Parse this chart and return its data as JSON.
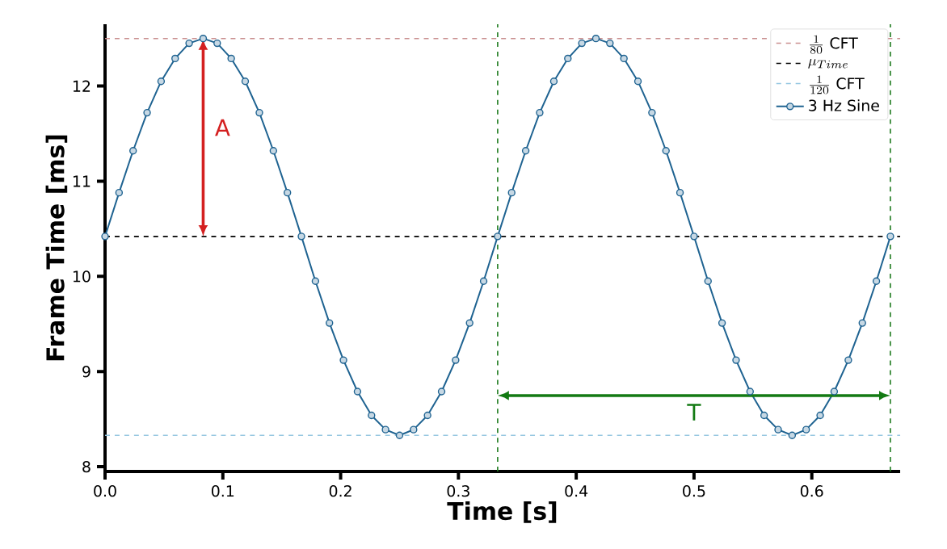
{
  "chart_data": {
    "type": "line",
    "xlabel": "Time [s]",
    "ylabel": "Frame Time [ms]",
    "xlim": [
      0,
      0.675
    ],
    "ylim": [
      7.95,
      12.65
    ],
    "xticks": [
      {
        "value": 0,
        "label": "0.0"
      },
      0.1,
      0.2,
      0.3,
      0.4,
      0.5,
      0.6
    ],
    "yticks": [
      8,
      9,
      10,
      11,
      12
    ],
    "legend": "top right",
    "marker": "circle",
    "line_style": "solid",
    "ref_lines": [
      {
        "axis": "y",
        "value": 12.5,
        "label": "\\frac{1}{80}\\mbox{ CFT}",
        "color": "#c98f8f",
        "line_style": "dashed"
      },
      {
        "axis": "y",
        "value": 10.42,
        "label": "\\mu_{Time}",
        "color": "#000000",
        "line_style": "dashed"
      },
      {
        "axis": "y",
        "value": 8.33,
        "label": "\\frac{1}{120}\\mbox{ CFT}",
        "color": "#94c6e0",
        "line_style": "dashed"
      },
      {
        "axis": "x",
        "value": 0.3333,
        "color": "#1e7b1e",
        "line_style": "dashed"
      },
      {
        "axis": "x",
        "value": 0.6667,
        "color": "#1e7b1e",
        "line_style": "dashed"
      }
    ],
    "annotations": [
      "A",
      "T"
    ],
    "series": [
      {
        "name": "3 Hz Sine",
        "color": "#1f6391",
        "x": [
          0,
          0.0119,
          0.0238,
          0.0357,
          0.0476,
          0.0595,
          0.0714,
          0.0833,
          0.0952,
          0.1071,
          0.119,
          0.131,
          0.1429,
          0.1548,
          0.1667,
          0.1786,
          0.1905,
          0.2024,
          0.2143,
          0.2262,
          0.2381,
          0.25,
          0.2619,
          0.2738,
          0.2857,
          0.2976,
          0.3095,
          0.3214,
          0.3333,
          0.3452,
          0.3571,
          0.369,
          0.381,
          0.3929,
          0.4048,
          0.4167,
          0.4286,
          0.4405,
          0.4524,
          0.4643,
          0.4762,
          0.4881,
          0.5,
          0.5119,
          0.5238,
          0.5357,
          0.5476,
          0.5595,
          0.5714,
          0.5833,
          0.5952,
          0.6071,
          0.619,
          0.631,
          0.6429,
          0.6548,
          0.6667
        ],
        "values": [
          10.42,
          10.88,
          11.32,
          11.72,
          12.05,
          12.29,
          12.45,
          12.5,
          12.45,
          12.29,
          12.05,
          11.72,
          11.32,
          10.88,
          10.42,
          9.95,
          9.51,
          9.12,
          8.79,
          8.54,
          8.39,
          8.33,
          8.39,
          8.54,
          8.79,
          9.12,
          9.51,
          9.95,
          10.42,
          10.88,
          11.32,
          11.72,
          12.05,
          12.29,
          12.45,
          12.5,
          12.45,
          12.29,
          12.05,
          11.72,
          11.32,
          10.88,
          10.42,
          9.95,
          9.51,
          9.12,
          8.79,
          8.54,
          8.39,
          8.33,
          8.39,
          8.54,
          8.79,
          9.12,
          9.51,
          9.95,
          10.42
        ]
      }
    ]
  }
}
